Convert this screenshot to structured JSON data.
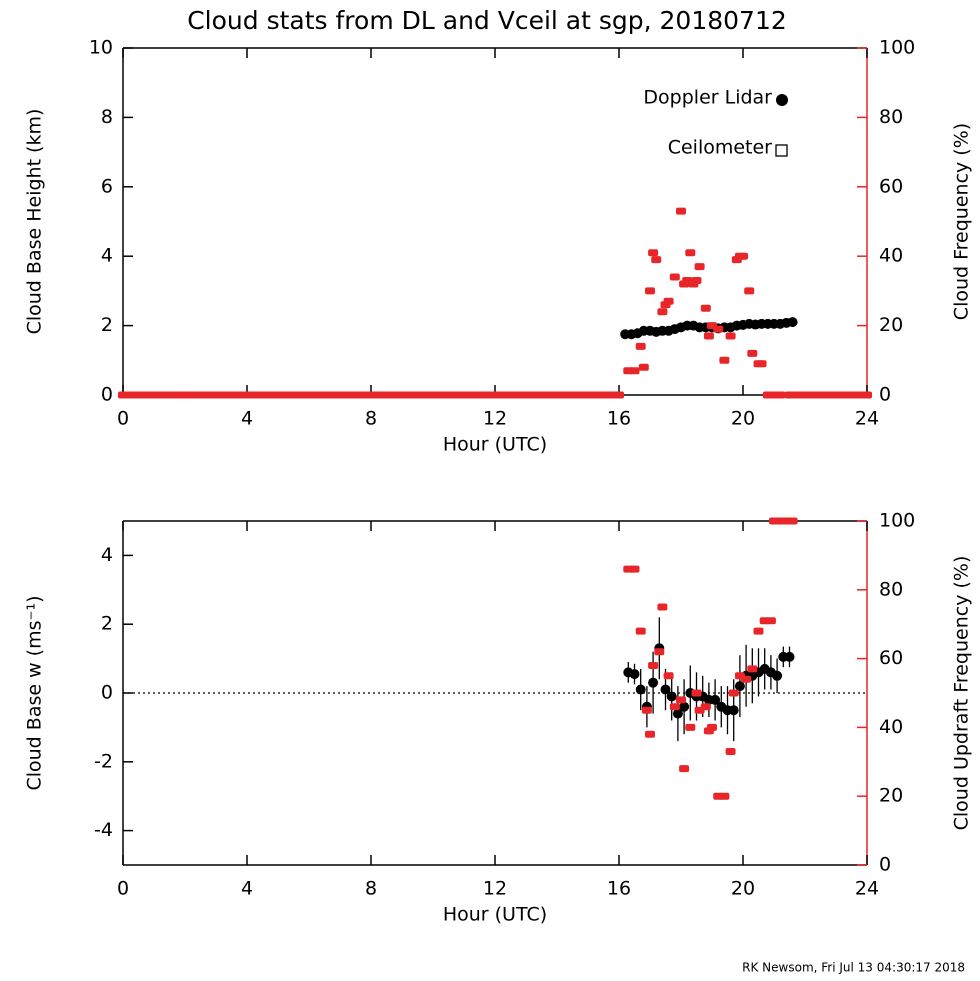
{
  "chart_data": [
    {
      "type": "scatter",
      "title": "Cloud stats from DL and Vceil at sgp, 20180712",
      "xlabel": "Hour (UTC)",
      "ylabel": "Cloud Base Height (km)",
      "y2label": "Cloud Frequency (%)",
      "xlim": [
        0,
        24
      ],
      "xticks": [
        0,
        4,
        8,
        12,
        16,
        20,
        24
      ],
      "ylim": [
        0,
        10
      ],
      "yticks": [
        0,
        2,
        4,
        6,
        8,
        10
      ],
      "y2lim": [
        0,
        100
      ],
      "y2ticks": [
        0,
        20,
        40,
        60,
        80,
        100
      ],
      "legend": "upper right",
      "y2color": "#e8262a",
      "series": [
        {
          "name": "Doppler Lidar",
          "color": "#000000",
          "marker": "circle",
          "x": [
            16.2,
            16.4,
            16.6,
            16.8,
            17.0,
            17.2,
            17.4,
            17.6,
            17.8,
            18.0,
            18.2,
            18.4,
            18.6,
            18.8,
            19.0,
            19.2,
            19.4,
            19.6,
            19.8,
            20.0,
            20.2,
            20.4,
            20.6,
            20.8,
            21.0,
            21.2,
            21.4,
            21.6
          ],
          "values": [
            1.75,
            1.75,
            1.78,
            1.85,
            1.85,
            1.82,
            1.85,
            1.85,
            1.9,
            1.95,
            2.0,
            2.0,
            1.95,
            1.95,
            1.95,
            1.92,
            1.95,
            1.95,
            2.0,
            2.02,
            2.05,
            2.03,
            2.05,
            2.05,
            2.05,
            2.05,
            2.08,
            2.1
          ]
        },
        {
          "name": "Ceilometer",
          "color": "#000000",
          "marker": "square-open",
          "x": [],
          "values": []
        },
        {
          "color": "#e8262a",
          "marker": "rect",
          "axis": "y2",
          "x": [
            0,
            0.25,
            0.5,
            0.75,
            1,
            1.25,
            1.5,
            1.75,
            2,
            2.25,
            2.5,
            2.75,
            3,
            3.25,
            3.5,
            3.75,
            4,
            4.25,
            4.5,
            4.75,
            5,
            5.25,
            5.5,
            5.75,
            6,
            6.25,
            6.5,
            6.75,
            7,
            7.25,
            7.5,
            7.75,
            8,
            8.25,
            8.5,
            8.75,
            9,
            9.25,
            9.5,
            9.75,
            10,
            10.25,
            10.5,
            10.75,
            11,
            11.25,
            11.5,
            11.75,
            12,
            12.25,
            12.5,
            12.75,
            13,
            13.25,
            13.5,
            13.75,
            14,
            14.25,
            14.5,
            14.75,
            15,
            15.25,
            15.5,
            15.75,
            16,
            16.3,
            16.5,
            16.7,
            16.8,
            17.0,
            17.1,
            17.2,
            17.4,
            17.5,
            17.6,
            17.8,
            18.0,
            18.1,
            18.2,
            18.3,
            18.4,
            18.5,
            18.6,
            18.8,
            18.9,
            19.0,
            19.2,
            19.4,
            19.6,
            19.8,
            19.9,
            20.0,
            20.2,
            20.3,
            20.5,
            20.6,
            20.8,
            21.0,
            21.2,
            21.5,
            21.75,
            22,
            22.25,
            22.5,
            22.75,
            23,
            23.25,
            23.5,
            23.75,
            24
          ],
          "values": [
            0,
            0,
            0,
            0,
            0,
            0,
            0,
            0,
            0,
            0,
            0,
            0,
            0,
            0,
            0,
            0,
            0,
            0,
            0,
            0,
            0,
            0,
            0,
            0,
            0,
            0,
            0,
            0,
            0,
            0,
            0,
            0,
            0,
            0,
            0,
            0,
            0,
            0,
            0,
            0,
            0,
            0,
            0,
            0,
            0,
            0,
            0,
            0,
            0,
            0,
            0,
            0,
            0,
            0,
            0,
            0,
            0,
            0,
            0,
            0,
            0,
            0,
            0,
            0,
            0,
            7,
            7,
            14,
            8,
            30,
            41,
            39,
            24,
            26,
            27,
            34,
            53,
            32,
            33,
            41,
            32,
            33,
            37,
            25,
            17,
            20,
            19,
            10,
            17,
            39,
            40,
            40,
            30,
            12,
            9,
            9,
            0,
            0,
            0,
            0,
            0,
            0,
            0,
            0,
            0,
            0,
            0,
            0,
            0,
            0
          ]
        }
      ]
    },
    {
      "type": "scatter",
      "xlabel": "Hour (UTC)",
      "ylabel": "Cloud Base w (ms⁻¹)",
      "y2label": "Cloud Updraft Frequency (%)",
      "xlim": [
        0,
        24
      ],
      "xticks": [
        0,
        4,
        8,
        12,
        16,
        20,
        24
      ],
      "ylim": [
        -5,
        5
      ],
      "yticks": [
        -4,
        -2,
        0,
        2,
        4
      ],
      "y2lim": [
        0,
        100
      ],
      "y2ticks": [
        0,
        20,
        40,
        60,
        80,
        100
      ],
      "y2color": "#e8262a",
      "hline": 0,
      "series": [
        {
          "color": "#000000",
          "marker": "circle",
          "x": [
            16.3,
            16.5,
            16.7,
            16.9,
            17.1,
            17.3,
            17.5,
            17.7,
            17.9,
            18.1,
            18.3,
            18.5,
            18.7,
            18.9,
            19.1,
            19.3,
            19.5,
            19.7,
            19.9,
            20.1,
            20.3,
            20.5,
            20.7,
            20.9,
            21.1,
            21.3,
            21.5
          ],
          "values": [
            0.6,
            0.55,
            0.1,
            -0.4,
            0.3,
            1.3,
            0.1,
            -0.1,
            -0.6,
            -0.4,
            0.0,
            -0.1,
            -0.1,
            -0.2,
            -0.2,
            -0.4,
            -0.5,
            -0.5,
            0.2,
            0.5,
            0.5,
            0.6,
            0.7,
            0.6,
            0.5,
            1.05,
            1.05
          ],
          "errors": [
            0.3,
            0.3,
            0.6,
            0.6,
            0.9,
            0.9,
            0.6,
            0.7,
            0.8,
            0.8,
            0.8,
            0.7,
            0.6,
            0.5,
            0.6,
            0.6,
            0.7,
            0.9,
            0.9,
            0.9,
            0.8,
            0.7,
            0.6,
            0.5,
            0.5,
            0.3,
            0.3
          ]
        },
        {
          "color": "#e8262a",
          "marker": "rect",
          "axis": "y2",
          "x": [
            16.3,
            16.5,
            16.7,
            16.9,
            17.0,
            17.1,
            17.3,
            17.4,
            17.6,
            17.8,
            18.0,
            18.1,
            18.3,
            18.5,
            18.6,
            18.8,
            18.9,
            19.0,
            19.2,
            19.4,
            19.6,
            19.7,
            19.9,
            20.1,
            20.3,
            20.5,
            20.7,
            20.9,
            21.0,
            21.2,
            21.4,
            21.6
          ],
          "values": [
            86,
            86,
            68,
            45,
            38,
            58,
            62,
            75,
            55,
            46,
            48,
            28,
            40,
            50,
            45,
            46,
            39,
            40,
            20,
            20,
            33,
            50,
            55,
            54,
            57,
            68,
            71,
            71,
            100,
            100,
            100,
            100
          ]
        }
      ]
    }
  ],
  "footer": "RK Newsom, Fri Jul 13 04:30:17 2018"
}
